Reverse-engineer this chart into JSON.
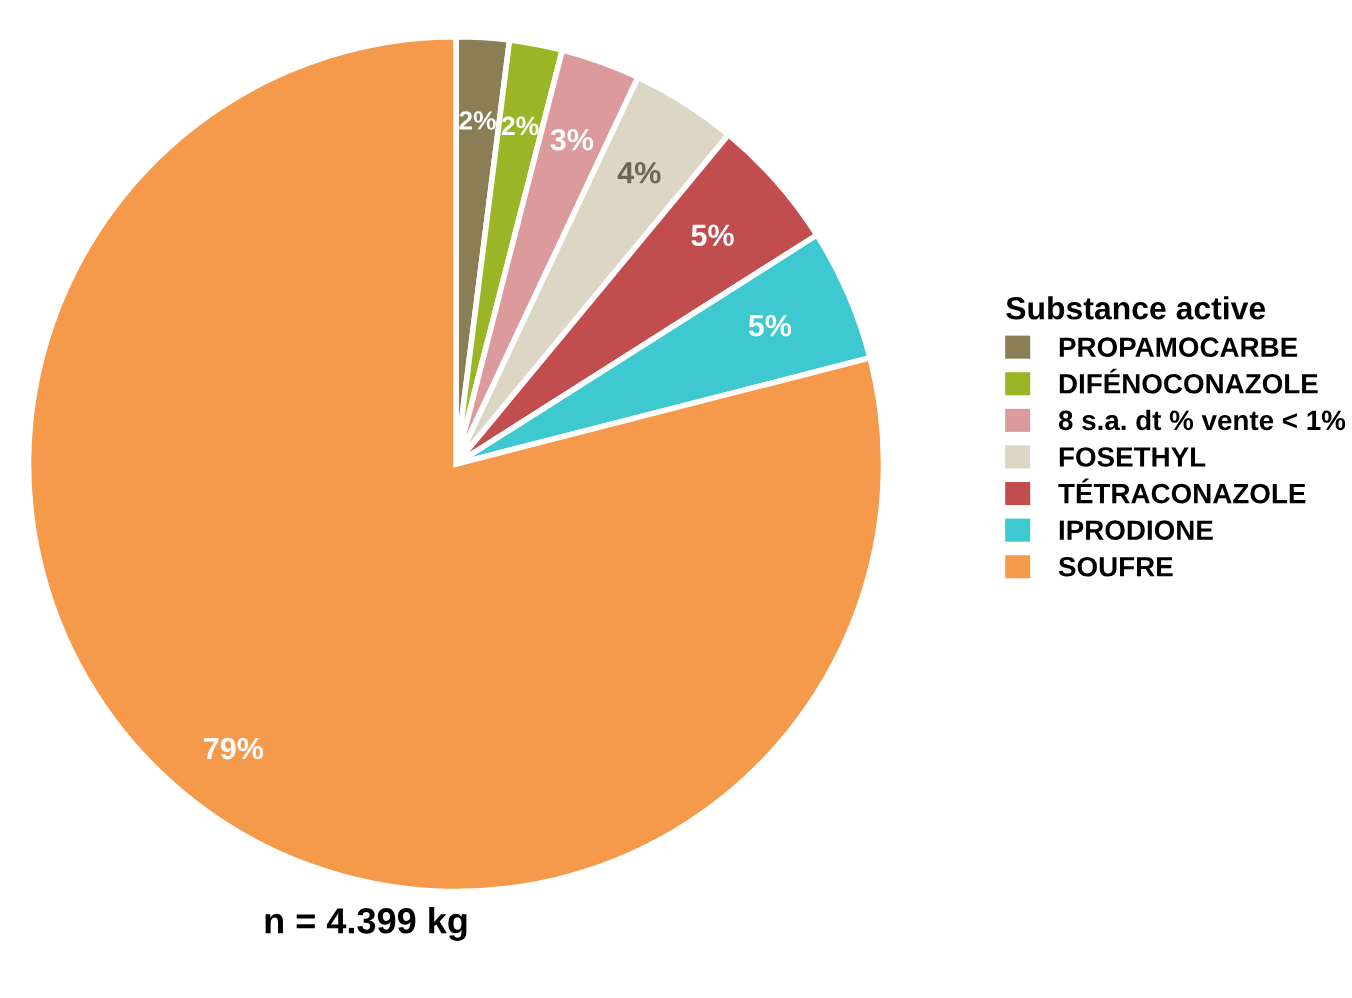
{
  "chart_data": {
    "type": "pie",
    "categories": [
      "PROPAMOCARBE",
      "DIFÉNOCONAZOLE",
      "8 s.a. dt % vente < 1%",
      "FOSETHYL",
      "TÉTRACONAZOLE",
      "IPRODIONE",
      "SOUFRE"
    ],
    "values": [
      2,
      2,
      3,
      4,
      5,
      5,
      79
    ],
    "value_labels": [
      "2%",
      "2%",
      "3%",
      "4%",
      "5%",
      "5%",
      "79%"
    ],
    "colors": [
      "#8b7d55",
      "#9ab526",
      "#dc9a9c",
      "#dcd7c4",
      "#c24d4f",
      "#3ec8cf",
      "#f5994a"
    ],
    "legend_title": "Substance active",
    "legend": "right",
    "annotations": [
      "n = 4.399 kg"
    ]
  }
}
